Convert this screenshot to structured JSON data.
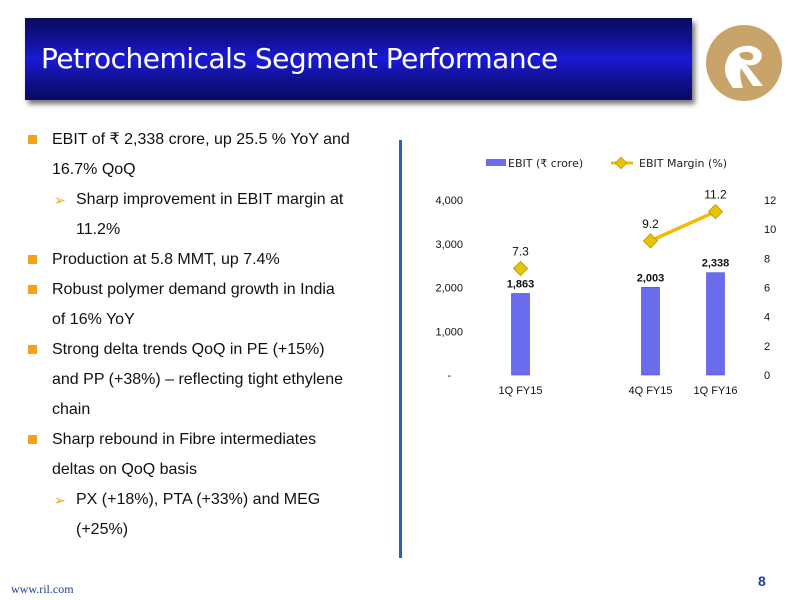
{
  "slide": {
    "title": "Petrochemicals Segment Performance",
    "footer_url": "www.ril.com",
    "page_number": "8"
  },
  "bullets": [
    {
      "level": 1,
      "text": "EBIT of ₹ 2,338 crore, up 25.5 % YoY and",
      "cont": "16.7% QoQ"
    },
    {
      "level": 2,
      "text": "Sharp improvement in EBIT margin at",
      "cont": "11.2%"
    },
    {
      "level": 1,
      "text": "Production at 5.8 MMT, up 7.4%",
      "cont": ""
    },
    {
      "level": 1,
      "text": "Robust polymer demand growth in India",
      "cont": "of 16% YoY"
    },
    {
      "level": 1,
      "text": "Strong delta trends QoQ in PE (+15%)",
      "cont": "and PP (+38%) – reflecting tight ethylene",
      "cont2": "chain"
    },
    {
      "level": 1,
      "text": "Sharp rebound in Fibre intermediates",
      "cont": "deltas on QoQ basis"
    },
    {
      "level": 2,
      "text": " PX (+18%), PTA (+33%) and MEG",
      "cont": "(+25%)"
    }
  ],
  "chart_data": {
    "type": "bar",
    "categories": [
      "1Q FY15",
      "",
      "4Q FY15",
      "1Q FY16"
    ],
    "series": [
      {
        "name": "EBIT (₹ crore)",
        "type": "bar",
        "axis": "left",
        "values": [
          1863,
          null,
          2003,
          2338
        ],
        "labels": [
          "1,863",
          "",
          "2,003",
          "2,338"
        ]
      },
      {
        "name": "EBIT Margin (%)",
        "type": "line",
        "axis": "right",
        "values": [
          7.3,
          null,
          9.2,
          11.2
        ],
        "labels": [
          "7.3",
          "",
          "9.2",
          "11.2"
        ]
      }
    ],
    "y_left": {
      "min": 0,
      "max": 4000,
      "ticks": [
        "-",
        "1,000",
        "2,000",
        "3,000",
        "4,000"
      ]
    },
    "y_right": {
      "min": 0,
      "max": 12,
      "ticks": [
        "0",
        "2",
        "4",
        "6",
        "8",
        "10",
        "12"
      ]
    },
    "legend": "top",
    "grid": false,
    "colors": {
      "bar": "#6b6bee",
      "line": "#f5b800",
      "marker": "#e8c400"
    }
  }
}
